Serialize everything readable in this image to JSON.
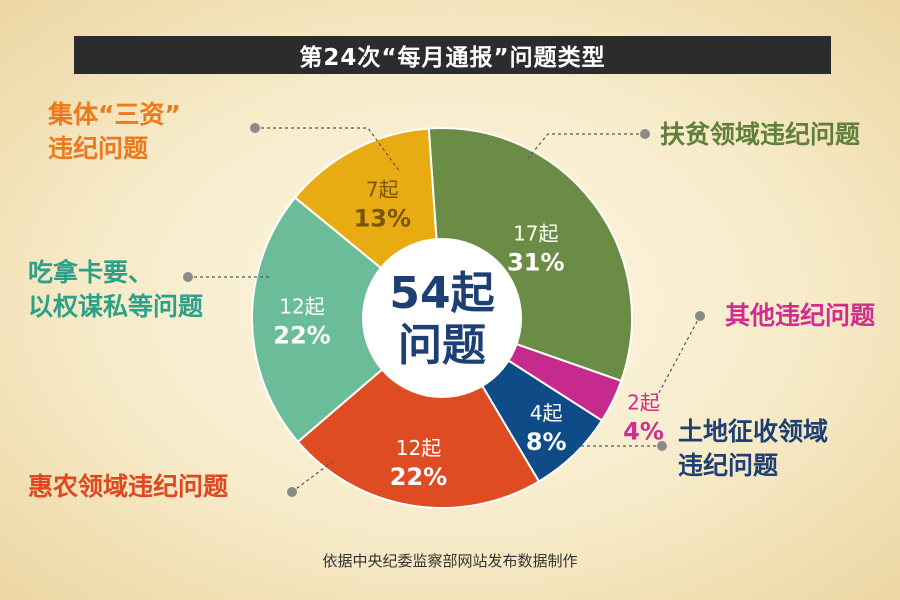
{
  "header": {
    "title": "第24次“每月通报”问题类型"
  },
  "center": {
    "line1": "54起",
    "line2": "问题"
  },
  "source": "依据中央纪委监察部网站发布数据制作",
  "chart_data": {
    "type": "pie",
    "title": "第24次“每月通报”问题类型",
    "total": 54,
    "center_label": [
      "54起",
      "问题"
    ],
    "slices": [
      {
        "name": "扶贫领域违纪问题",
        "label_lines": [
          "扶贫领域违纪问题"
        ],
        "count": 17,
        "count_label": "17起",
        "percent": 31,
        "percent_label": "31%",
        "color": "#6b8c44",
        "label_color": "#5f7f3a",
        "value_color": "#ffffff"
      },
      {
        "name": "其他违纪问题",
        "label_lines": [
          "其他违纪问题"
        ],
        "count": 2,
        "count_label": "2起",
        "percent": 4,
        "percent_label": "4%",
        "color": "#c52a8c",
        "label_color": "#d12c8f",
        "value_color": "#d12c8f"
      },
      {
        "name": "土地征收领域违纪问题",
        "label_lines": [
          "土地征收领域",
          "违纪问题"
        ],
        "count": 4,
        "count_label": "4起",
        "percent": 8,
        "percent_label": "8%",
        "color": "#0e4b87",
        "label_color": "#1d3f73",
        "value_color": "#ffffff"
      },
      {
        "name": "惠农领域违纪问题",
        "label_lines": [
          "惠农领域违纪问题"
        ],
        "count": 12,
        "count_label": "12起",
        "percent": 22,
        "percent_label": "22%",
        "color": "#df4b23",
        "label_color": "#e0471f",
        "value_color": "#ffffff"
      },
      {
        "name": "吃拿卡要、以权谋私等问题",
        "label_lines": [
          "吃拿卡要、",
          "以权谋私等问题"
        ],
        "count": 12,
        "count_label": "12起",
        "percent": 22,
        "percent_label": "22%",
        "color": "#6bbd9a",
        "label_color": "#2da188",
        "value_color": "#ffffff"
      },
      {
        "name": "集体“三资”违纪问题",
        "label_lines": [
          "集体“三资”",
          "违纪问题"
        ],
        "count": 7,
        "count_label": "7起",
        "percent": 13,
        "percent_label": "13%",
        "color": "#e8ac12",
        "label_color": "#ec7a1d",
        "value_color": "#7a5508"
      }
    ],
    "legend": "none",
    "grid": false
  }
}
